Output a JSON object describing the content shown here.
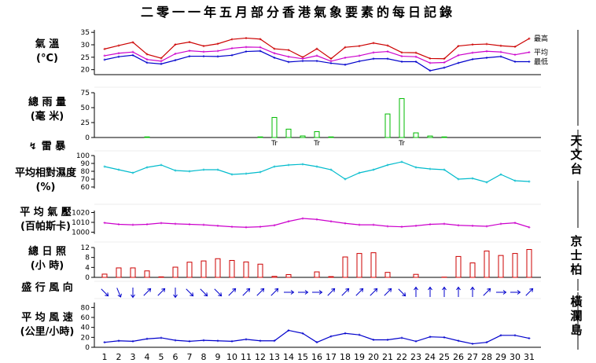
{
  "title": "二零一一年五月部分香港氣象要素的每日記錄",
  "labels": {
    "temperature": [
      "氣 溫",
      "(°C)"
    ],
    "rainfall": [
      "總 雨 量",
      "(毫 米)"
    ],
    "thunder": "雷 暴",
    "humidity": [
      "平均相對濕度",
      "(%)"
    ],
    "pressure": [
      "平 均 氣 壓",
      "(百帕斯卡)"
    ],
    "sunshine": [
      "總 日 照",
      "(小 時)"
    ],
    "wind_dir": "盛 行 風 向",
    "wind_speed": [
      "平 均 風 速",
      "(公里/小時)"
    ]
  },
  "stations": {
    "observatory": "天文台",
    "kingspark": "京士柏",
    "waglan": "橫瀾島"
  },
  "series_labels": {
    "max": "最高",
    "mean": "平均",
    "min": "最低"
  },
  "trace_label": "Tr",
  "colors": {
    "max": "#cc0000",
    "mean": "#cc00cc",
    "min": "#0000cc",
    "rain": "#00bb00",
    "humidity": "#00bbcc",
    "pressure": "#cc00cc",
    "sunshine": "#cc0000",
    "wind": "#0000cc"
  },
  "chart_data": [
    {
      "type": "line",
      "name": "temperature",
      "x": [
        1,
        2,
        3,
        4,
        5,
        6,
        7,
        8,
        9,
        10,
        11,
        12,
        13,
        14,
        15,
        16,
        17,
        18,
        19,
        20,
        21,
        22,
        23,
        24,
        25,
        26,
        27,
        28,
        29,
        30,
        31
      ],
      "yticks": [
        20,
        25,
        30,
        35
      ],
      "ylim": [
        18,
        36
      ],
      "series": [
        {
          "name": "最高",
          "values": [
            28.3,
            29.7,
            31.0,
            26.2,
            24.6,
            30.1,
            31.1,
            29.5,
            30.4,
            32.2,
            32.7,
            32.3,
            28.4,
            27.9,
            25.0,
            28.4,
            24.4,
            29.0,
            29.5,
            30.7,
            29.7,
            26.9,
            26.8,
            24.5,
            24.4,
            29.5,
            30.1,
            30.3,
            29.6,
            29.2,
            32.5
          ]
        },
        {
          "name": "平均",
          "values": [
            25.6,
            26.6,
            27.1,
            24.1,
            23.4,
            26.4,
            27.6,
            27.2,
            27.5,
            28.6,
            29.1,
            29.0,
            26.6,
            25.2,
            24.4,
            25.6,
            23.4,
            24.8,
            25.6,
            26.9,
            27.3,
            25.4,
            25.2,
            22.7,
            22.9,
            25.8,
            26.8,
            27.4,
            27.1,
            26.0,
            27.0
          ]
        },
        {
          "name": "最低",
          "values": [
            24.0,
            25.2,
            25.8,
            22.8,
            22.3,
            23.8,
            25.4,
            25.4,
            25.3,
            25.8,
            27.3,
            27.5,
            24.8,
            23.1,
            23.5,
            23.5,
            22.6,
            22.0,
            23.4,
            24.4,
            24.4,
            23.2,
            23.2,
            19.6,
            20.8,
            22.7,
            24.2,
            24.8,
            25.3,
            23.2,
            23.2
          ]
        }
      ]
    },
    {
      "type": "bar",
      "name": "rainfall",
      "x": [
        1,
        2,
        3,
        4,
        5,
        6,
        7,
        8,
        9,
        10,
        11,
        12,
        13,
        14,
        15,
        16,
        17,
        18,
        19,
        20,
        21,
        22,
        23,
        24,
        25,
        26,
        27,
        28,
        29,
        30,
        31
      ],
      "values": [
        0,
        0,
        0,
        0.3,
        0,
        0,
        0,
        0,
        0,
        0,
        0,
        0.3,
        33.6,
        14.0,
        2.6,
        9.8,
        0.2,
        0,
        0,
        0,
        39.4,
        65.2,
        7.8,
        2.5,
        0.7,
        0,
        0,
        0,
        0,
        0,
        0
      ],
      "yticks": [
        0,
        25,
        50,
        75
      ],
      "ylim": [
        0,
        75
      ]
    },
    {
      "type": "line",
      "name": "humidity",
      "x": [
        1,
        2,
        3,
        4,
        5,
        6,
        7,
        8,
        9,
        10,
        11,
        12,
        13,
        14,
        15,
        16,
        17,
        18,
        19,
        20,
        21,
        22,
        23,
        24,
        25,
        26,
        27,
        28,
        29,
        30,
        31
      ],
      "values": [
        86,
        82,
        78,
        85,
        88,
        81,
        80,
        82,
        82,
        76,
        77,
        79,
        86,
        88,
        89,
        86,
        82,
        70,
        78,
        82,
        88,
        92,
        85,
        83,
        82,
        70,
        71,
        66,
        76,
        68,
        67
      ],
      "yticks": [
        60,
        70,
        80,
        90,
        100
      ],
      "ylim": [
        58,
        100
      ]
    },
    {
      "type": "line",
      "name": "pressure",
      "x": [
        1,
        2,
        3,
        4,
        5,
        6,
        7,
        8,
        9,
        10,
        11,
        12,
        13,
        14,
        15,
        16,
        17,
        18,
        19,
        20,
        21,
        22,
        23,
        24,
        25,
        26,
        27,
        28,
        29,
        30,
        31
      ],
      "values": [
        1009.5,
        1008.0,
        1007.5,
        1008.0,
        1009.3,
        1008.5,
        1008.0,
        1007.5,
        1006.5,
        1005.5,
        1005.0,
        1005.5,
        1007.0,
        1011.0,
        1014.0,
        1013.0,
        1011.0,
        1009.0,
        1007.5,
        1007.5,
        1006.0,
        1005.5,
        1006.5,
        1008.0,
        1008.5,
        1007.0,
        1006.5,
        1006.0,
        1008.5,
        1009.5,
        1005.0
      ],
      "yticks": [
        1000,
        1010,
        1020
      ],
      "ylim": [
        998,
        1022
      ]
    },
    {
      "type": "bar",
      "name": "sunshine",
      "x": [
        1,
        2,
        3,
        4,
        5,
        6,
        7,
        8,
        9,
        10,
        11,
        12,
        13,
        14,
        15,
        16,
        17,
        18,
        19,
        20,
        21,
        22,
        23,
        24,
        25,
        26,
        27,
        28,
        29,
        30,
        31
      ],
      "values": [
        1.3,
        3.8,
        3.8,
        2.6,
        0.2,
        4.1,
        6.1,
        6.6,
        7.5,
        6.8,
        6.2,
        5.3,
        0.4,
        1.1,
        0,
        2.2,
        0.3,
        8.2,
        9.6,
        9.9,
        2.0,
        0,
        1.2,
        0,
        0.1,
        8.4,
        5.8,
        10.6,
        8.8,
        9.6,
        11.2
      ],
      "yticks": [
        0,
        4,
        8,
        12
      ],
      "ylim": [
        0,
        12
      ]
    },
    {
      "type": "table",
      "name": "wind_direction",
      "x": [
        1,
        2,
        3,
        4,
        5,
        6,
        7,
        8,
        9,
        10,
        11,
        12,
        13,
        14,
        15,
        16,
        17,
        18,
        19,
        20,
        21,
        22,
        23,
        24,
        25,
        26,
        27,
        28,
        29,
        30,
        31
      ],
      "values": [
        "NW",
        "NNW",
        "N",
        "SW",
        "SW",
        "N",
        "NW",
        "NW",
        "NW",
        "SW",
        "SW",
        "SW",
        "SW",
        "W",
        "W",
        "W",
        "SW",
        "SW",
        "SW",
        "SW",
        "SW",
        "NW",
        "S",
        "S",
        "S",
        "S",
        "S",
        "SW",
        "W",
        "W",
        "SW"
      ]
    },
    {
      "type": "line",
      "name": "wind_speed",
      "x": [
        1,
        2,
        3,
        4,
        5,
        6,
        7,
        8,
        9,
        10,
        11,
        12,
        13,
        14,
        15,
        16,
        17,
        18,
        19,
        20,
        21,
        22,
        23,
        24,
        25,
        26,
        27,
        28,
        29,
        30,
        31
      ],
      "values": [
        10,
        13,
        12,
        17,
        19,
        14,
        12,
        14,
        13,
        12,
        16,
        13,
        13,
        34,
        28,
        10,
        22,
        28,
        25,
        15,
        15,
        19,
        12,
        21,
        20,
        13,
        7,
        10,
        24,
        24,
        18
      ],
      "yticks": [
        0,
        20,
        40,
        60,
        80
      ],
      "ylim": [
        0,
        90
      ]
    }
  ]
}
